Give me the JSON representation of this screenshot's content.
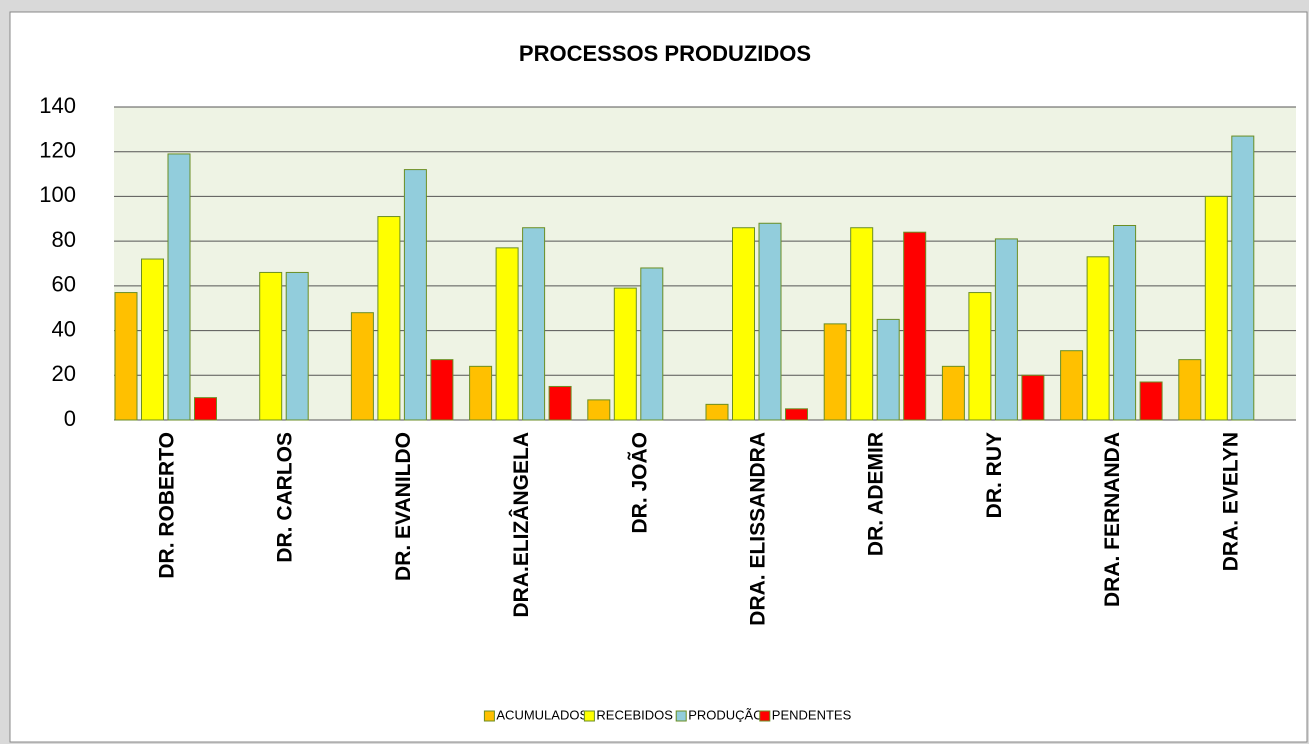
{
  "chart_data": {
    "type": "bar",
    "title": "PROCESSOS PRODUZIDOS",
    "categories": [
      "DR. ROBERTO",
      "DR. CARLOS",
      "DR. EVANILDO",
      "DRA.ELIZÂNGELA",
      "DR. JOÃO",
      "DRA. ELISSANDRA",
      "DR. ADEMIR",
      "DR. RUY",
      "DRA. FERNANDA",
      "DRA. EVELYN"
    ],
    "series": [
      {
        "name": "ACUMULADOS",
        "color": "#ffc000",
        "values": [
          57,
          0,
          48,
          24,
          9,
          7,
          43,
          24,
          31,
          27
        ]
      },
      {
        "name": "RECEBIDOS",
        "color": "#ffff00",
        "values": [
          72,
          66,
          91,
          77,
          59,
          86,
          86,
          57,
          73,
          100
        ]
      },
      {
        "name": "PRODUÇÃO",
        "color": "#92cddc",
        "values": [
          119,
          66,
          112,
          86,
          68,
          88,
          45,
          81,
          87,
          127
        ]
      },
      {
        "name": "PENDENTES",
        "color": "#ff0000",
        "values": [
          10,
          0,
          27,
          15,
          0,
          5,
          84,
          20,
          17,
          0
        ]
      }
    ],
    "ylim": [
      0,
      140
    ],
    "yticks": [
      0,
      20,
      40,
      60,
      80,
      100,
      120,
      140
    ],
    "grid": true
  }
}
